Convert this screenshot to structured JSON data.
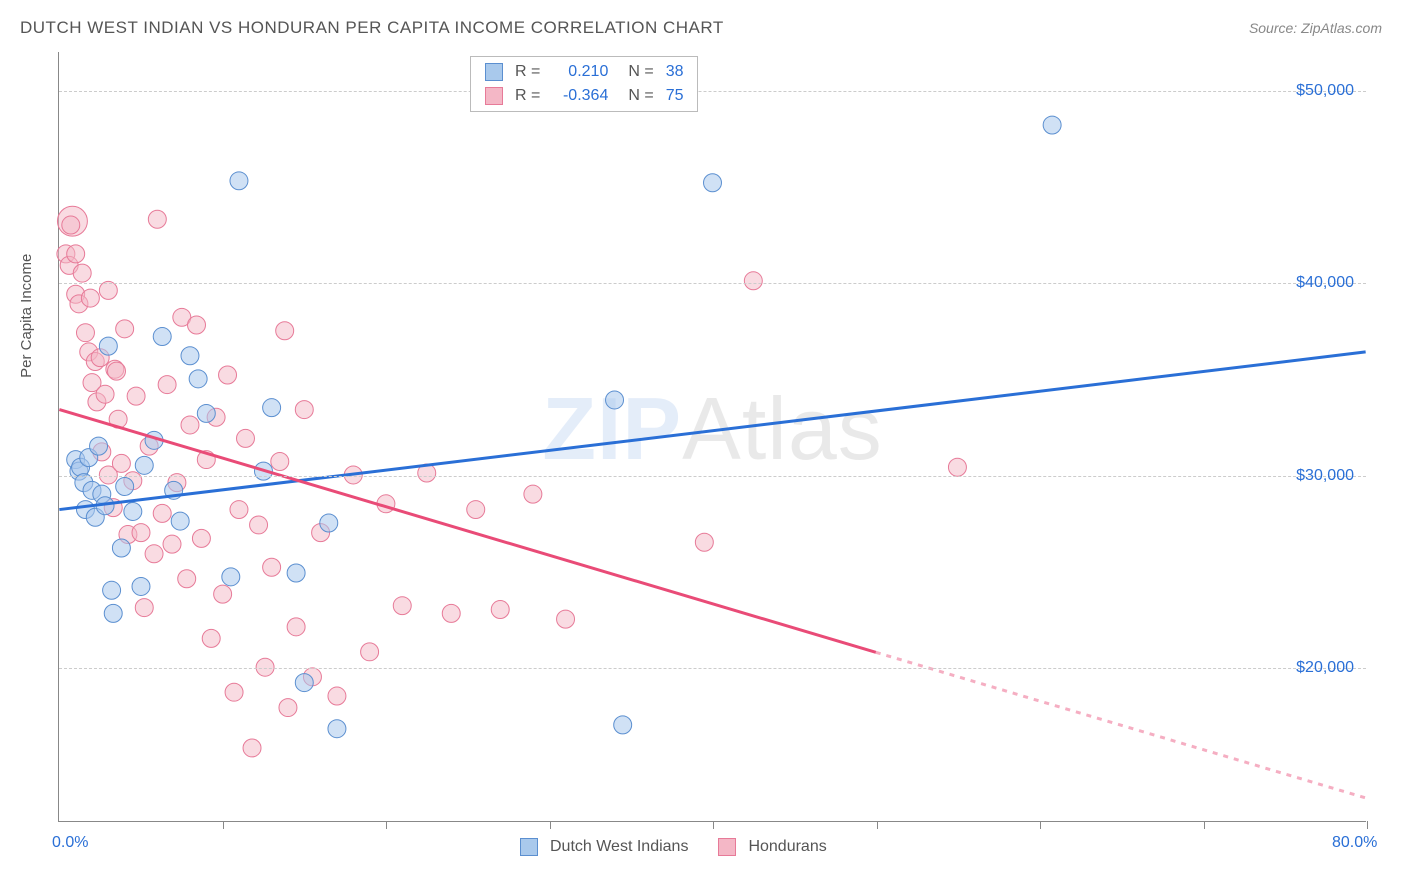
{
  "title": "DUTCH WEST INDIAN VS HONDURAN PER CAPITA INCOME CORRELATION CHART",
  "source": "Source: ZipAtlas.com",
  "yaxis_title": "Per Capita Income",
  "watermark_bold": "ZIP",
  "watermark_rest": "Atlas",
  "chart": {
    "type": "scatter",
    "background_color": "#ffffff",
    "grid_color": "#cccccc",
    "axis_color": "#888888",
    "xlim": [
      0,
      80
    ],
    "ylim": [
      12000,
      52000
    ],
    "x_min_label": "0.0%",
    "x_max_label": "80.0%",
    "xtick_positions": [
      0,
      10,
      20,
      30,
      40,
      50,
      60,
      70,
      80
    ],
    "y_gridlines": [
      20000,
      30000,
      40000,
      50000
    ],
    "y_labels": {
      "20000": "$20,000",
      "30000": "$30,000",
      "40000": "$40,000",
      "50000": "$50,000"
    },
    "label_color": "#2a6fd6",
    "label_fontsize": 16,
    "series": [
      {
        "name": "Dutch West Indians",
        "fill": "#a9c9ec",
        "stroke": "#5b8fd0",
        "fill_opacity": 0.55,
        "marker_radius": 9,
        "r_value": "0.210",
        "n_value": "38",
        "trend": {
          "x1": 0,
          "y1": 28200,
          "x2": 80,
          "y2": 36400,
          "solid_until_x": 80,
          "color": "#2a6fd6",
          "width": 3
        },
        "points": [
          [
            1.0,
            30800
          ],
          [
            1.2,
            30200
          ],
          [
            1.3,
            30400
          ],
          [
            1.5,
            29600
          ],
          [
            1.6,
            28200
          ],
          [
            1.8,
            30900
          ],
          [
            2.0,
            29200
          ],
          [
            2.2,
            27800
          ],
          [
            2.4,
            31500
          ],
          [
            2.6,
            29000
          ],
          [
            2.8,
            28400
          ],
          [
            3.0,
            36700
          ],
          [
            3.2,
            24000
          ],
          [
            3.3,
            22800
          ],
          [
            3.8,
            26200
          ],
          [
            4.0,
            29400
          ],
          [
            4.5,
            28100
          ],
          [
            5.0,
            24200
          ],
          [
            5.2,
            30500
          ],
          [
            5.8,
            31800
          ],
          [
            6.3,
            37200
          ],
          [
            7.0,
            29200
          ],
          [
            7.4,
            27600
          ],
          [
            8.0,
            36200
          ],
          [
            8.5,
            35000
          ],
          [
            9.0,
            33200
          ],
          [
            10.5,
            24700
          ],
          [
            11.0,
            45300
          ],
          [
            12.5,
            30200
          ],
          [
            13.0,
            33500
          ],
          [
            14.5,
            24900
          ],
          [
            15.0,
            19200
          ],
          [
            16.5,
            27500
          ],
          [
            17.0,
            16800
          ],
          [
            34.0,
            33900
          ],
          [
            34.5,
            17000
          ],
          [
            40.0,
            45200
          ],
          [
            60.8,
            48200
          ]
        ]
      },
      {
        "name": "Hondurans",
        "fill": "#f4b7c6",
        "stroke": "#e77a98",
        "fill_opacity": 0.5,
        "marker_radius": 9,
        "r_value": "-0.364",
        "n_value": "75",
        "trend": {
          "x1": 0,
          "y1": 33400,
          "x2": 80,
          "y2": 13200,
          "solid_until_x": 50,
          "color": "#e94b77",
          "width": 3
        },
        "points": [
          [
            0.4,
            41500
          ],
          [
            0.6,
            40900
          ],
          [
            0.8,
            43200,
            15
          ],
          [
            0.7,
            43000
          ],
          [
            1.0,
            39400
          ],
          [
            1.0,
            41500
          ],
          [
            1.2,
            38900
          ],
          [
            1.4,
            40500
          ],
          [
            1.6,
            37400
          ],
          [
            1.8,
            36400
          ],
          [
            1.9,
            39200
          ],
          [
            2.0,
            34800
          ],
          [
            2.2,
            35900
          ],
          [
            2.3,
            33800
          ],
          [
            2.5,
            36100
          ],
          [
            2.6,
            31200
          ],
          [
            2.8,
            34200
          ],
          [
            3.0,
            39600
          ],
          [
            3.0,
            30000
          ],
          [
            3.3,
            28300
          ],
          [
            3.4,
            35500
          ],
          [
            3.5,
            35400
          ],
          [
            3.6,
            32900
          ],
          [
            3.8,
            30600
          ],
          [
            4.0,
            37600
          ],
          [
            4.2,
            26900
          ],
          [
            4.5,
            29700
          ],
          [
            4.7,
            34100
          ],
          [
            5.0,
            27000
          ],
          [
            5.2,
            23100
          ],
          [
            5.5,
            31500
          ],
          [
            5.8,
            25900
          ],
          [
            6.0,
            43300
          ],
          [
            6.3,
            28000
          ],
          [
            6.6,
            34700
          ],
          [
            6.9,
            26400
          ],
          [
            7.2,
            29600
          ],
          [
            7.5,
            38200
          ],
          [
            7.8,
            24600
          ],
          [
            8.0,
            32600
          ],
          [
            8.4,
            37800
          ],
          [
            8.7,
            26700
          ],
          [
            9.0,
            30800
          ],
          [
            9.3,
            21500
          ],
          [
            9.6,
            33000
          ],
          [
            10.0,
            23800
          ],
          [
            10.3,
            35200
          ],
          [
            10.7,
            18700
          ],
          [
            11.0,
            28200
          ],
          [
            11.4,
            31900
          ],
          [
            11.8,
            15800
          ],
          [
            12.2,
            27400
          ],
          [
            12.6,
            20000
          ],
          [
            13.0,
            25200
          ],
          [
            13.5,
            30700
          ],
          [
            14.0,
            17900
          ],
          [
            14.5,
            22100
          ],
          [
            15.0,
            33400
          ],
          [
            15.5,
            19500
          ],
          [
            16.0,
            27000
          ],
          [
            17.0,
            18500
          ],
          [
            18.0,
            30000
          ],
          [
            19.0,
            20800
          ],
          [
            20.0,
            28500
          ],
          [
            21.0,
            23200
          ],
          [
            22.5,
            30100
          ],
          [
            24.0,
            22800
          ],
          [
            25.5,
            28200
          ],
          [
            27.0,
            23000
          ],
          [
            29.0,
            29000
          ],
          [
            31.0,
            22500
          ],
          [
            39.5,
            26500
          ],
          [
            42.5,
            40100
          ],
          [
            55.0,
            30400
          ],
          [
            13.8,
            37500
          ]
        ]
      }
    ]
  },
  "stats_box": {
    "rows": [
      {
        "swatch_fill": "#a9c9ec",
        "swatch_stroke": "#5b8fd0",
        "r_label": "R =",
        "r_val": "0.210",
        "n_label": "N =",
        "n_val": "38"
      },
      {
        "swatch_fill": "#f4b7c6",
        "swatch_stroke": "#e77a98",
        "r_label": "R =",
        "r_val": "-0.364",
        "n_label": "N =",
        "n_val": "75"
      }
    ]
  },
  "legend": [
    {
      "swatch_fill": "#a9c9ec",
      "swatch_stroke": "#5b8fd0",
      "label": "Dutch West Indians"
    },
    {
      "swatch_fill": "#f4b7c6",
      "swatch_stroke": "#e77a98",
      "label": "Hondurans"
    }
  ]
}
